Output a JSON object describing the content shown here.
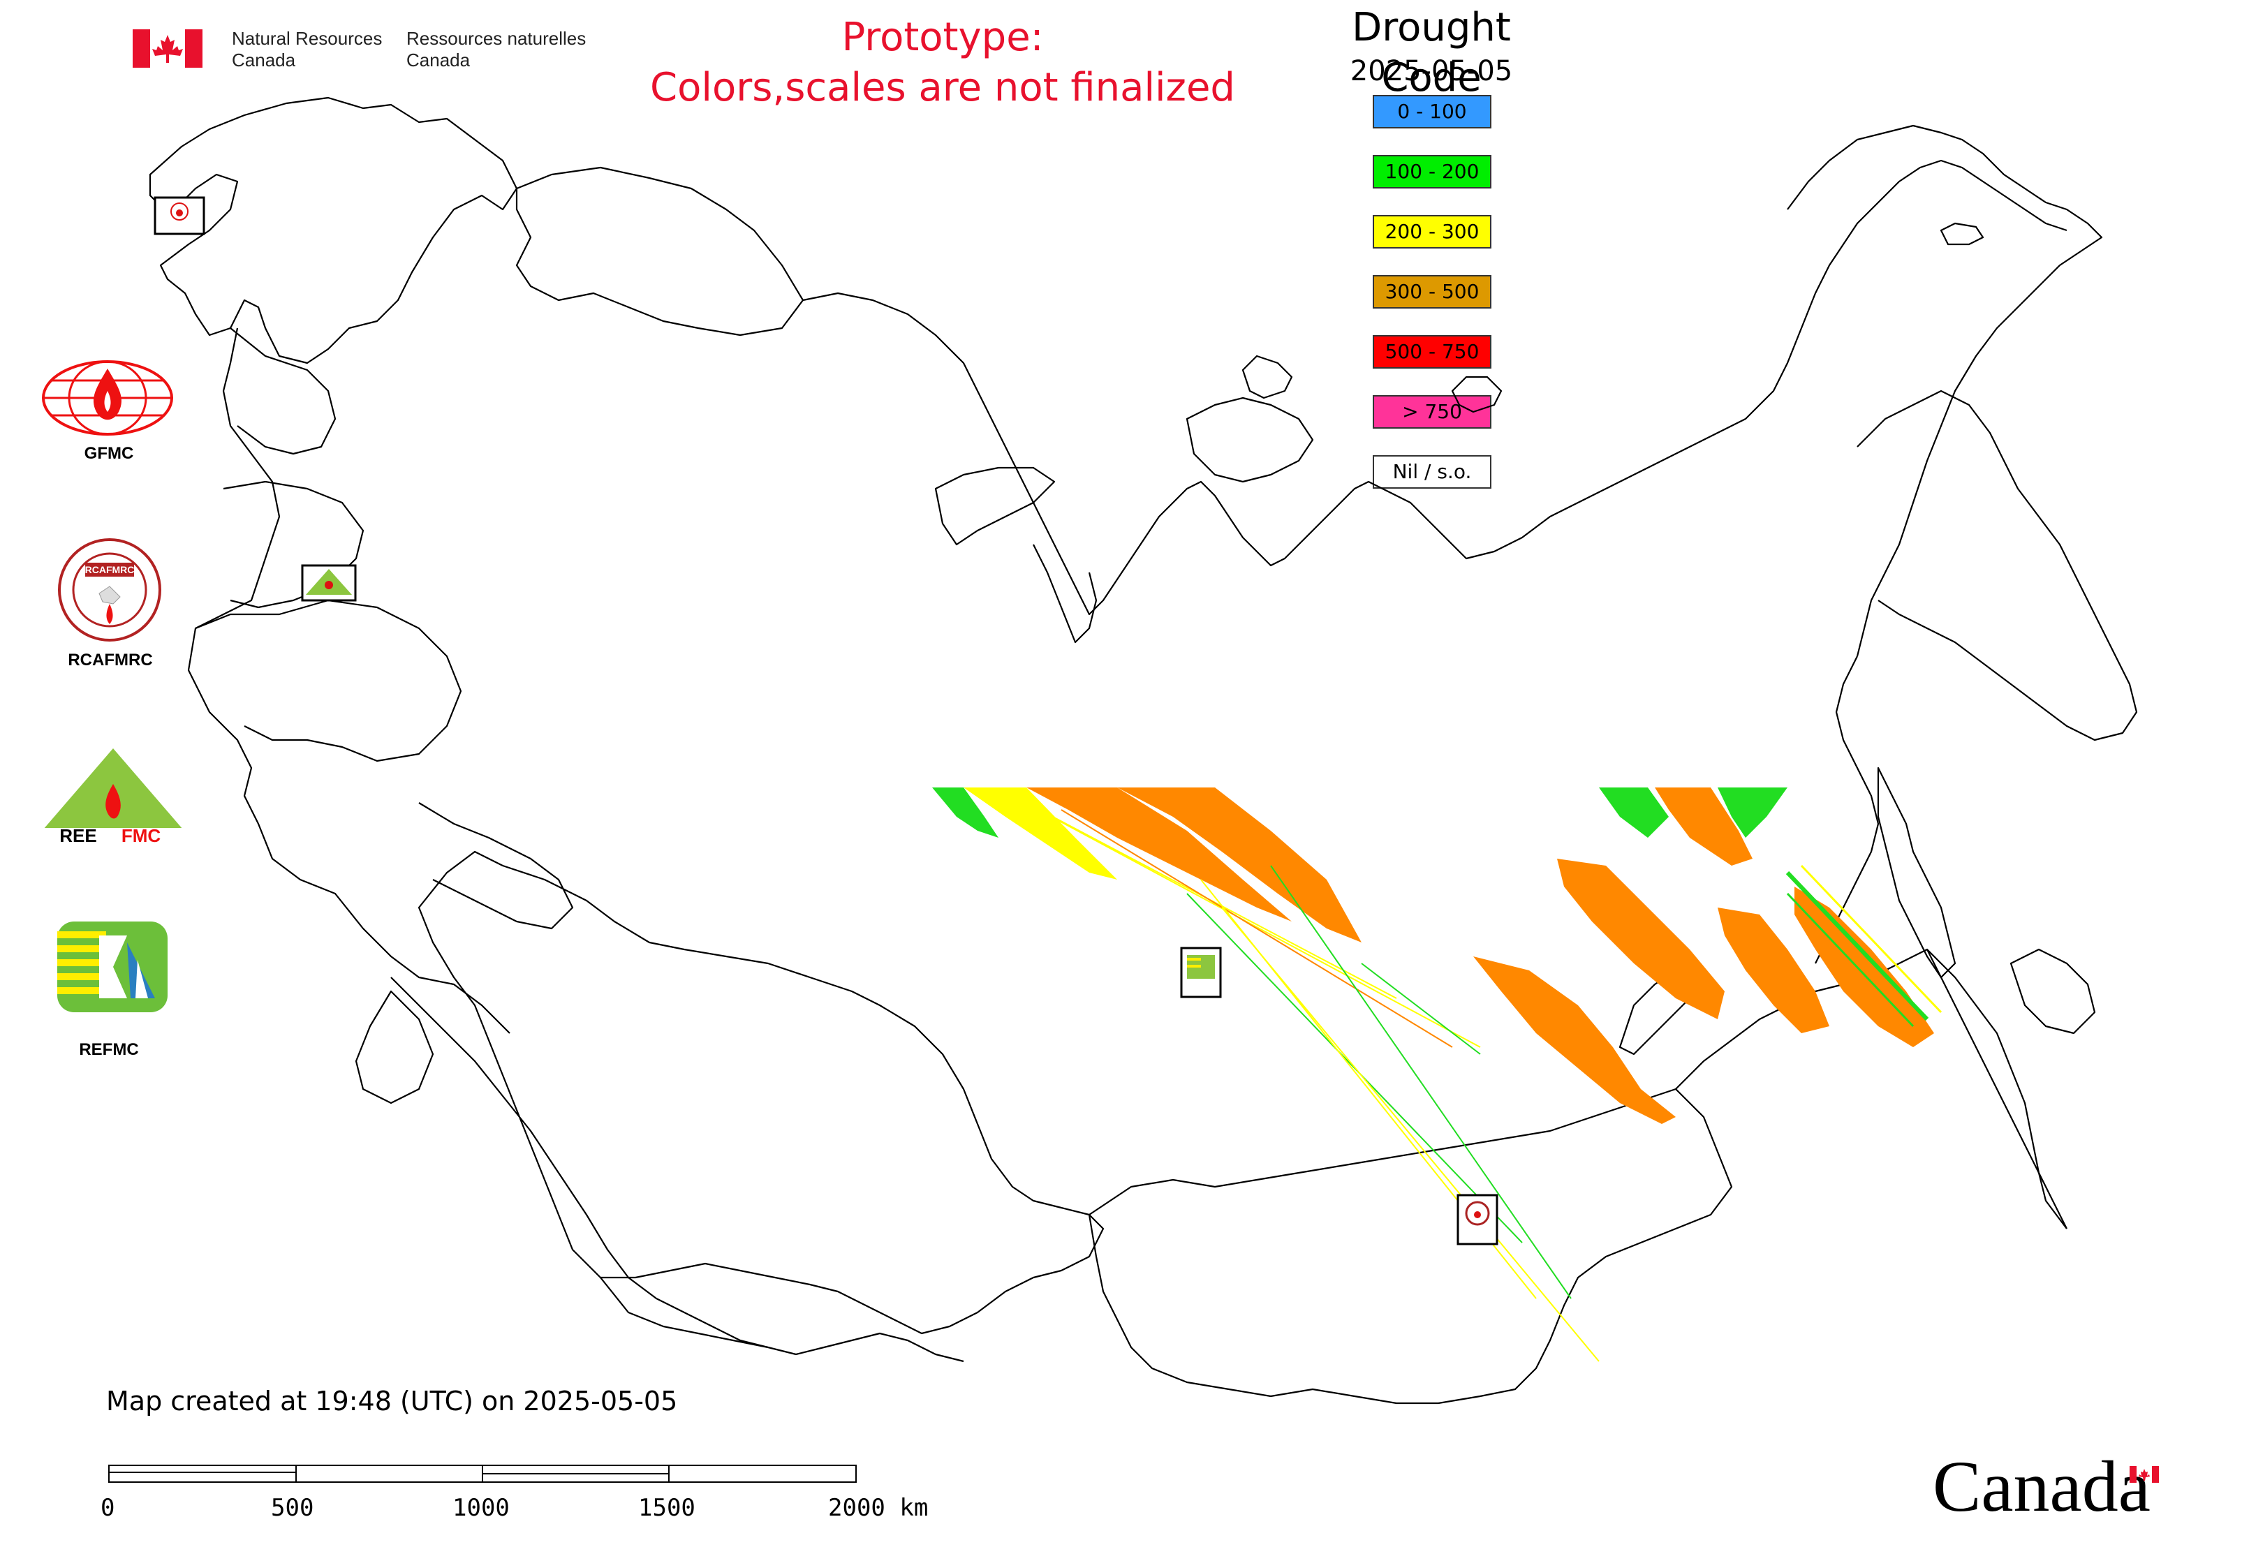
{
  "header": {
    "department_en_line1": "Natural Resources",
    "department_en_line2": "Canada",
    "department_fr_line1": "Ressources naturelles",
    "department_fr_line2": "Canada",
    "flag_icon": "canada-flag-icon"
  },
  "prototype_notice": {
    "line1": "Prototype:",
    "line2": "Colors,scales are not finalized",
    "color": "#e8112d"
  },
  "legend": {
    "title": "Drought Code",
    "date": "2025-05-05",
    "items": [
      {
        "label": "0 - 100",
        "color": "#3399ff"
      },
      {
        "label": "100 - 200",
        "color": "#00ee00"
      },
      {
        "label": "200 - 300",
        "color": "#ffff00"
      },
      {
        "label": "300 - 500",
        "color": "#dd9900"
      },
      {
        "label": "500 - 750",
        "color": "#ff0000"
      },
      {
        "label": "> 750",
        "color": "#ff3399"
      },
      {
        "label": "Nil / s.o.",
        "color": "#ffffff"
      }
    ]
  },
  "agencies": {
    "gfmc": {
      "label": "GFMC",
      "icon": "gfmc-logo-icon"
    },
    "rcafmrc": {
      "label": "RCAFMRC",
      "icon": "rcafmrc-logo-icon"
    },
    "reefmc": {
      "label": "REEFMC",
      "icon": "reefmc-logo-icon"
    },
    "refmc": {
      "label": "REFMC",
      "icon": "refmc-logo-icon"
    }
  },
  "footer": {
    "created_text": "Map created at 19:48 (UTC) on 2025-05-05",
    "scale_ticks": [
      "0",
      "500",
      "1000",
      "1500",
      "2000 km"
    ],
    "wordmark": "Canada"
  },
  "data_colors": {
    "dc_100_200": "#22dd22",
    "dc_200_300": "#ffff00",
    "dc_300_500": "#ff8800"
  }
}
